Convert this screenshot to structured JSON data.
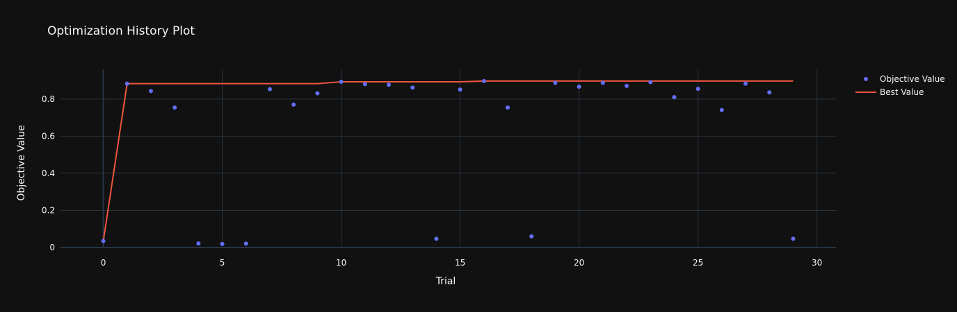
{
  "chart_data": {
    "type": "scatter",
    "title": "Optimization History Plot",
    "xlabel": "Trial",
    "ylabel": "Objective Value",
    "xlim": [
      -1.8,
      30.8
    ],
    "ylim": [
      0,
      0.96
    ],
    "xticks": [
      0,
      5,
      10,
      15,
      20,
      25,
      30
    ],
    "yticks": [
      0,
      0.2,
      0.4,
      0.6,
      0.8
    ],
    "ytick_labels": [
      "0",
      "0.2",
      "0.4",
      "0.6",
      "0.8"
    ],
    "grid": true,
    "legend_position": "top-right",
    "series": [
      {
        "name": "Objective Value",
        "type": "scatter",
        "color": "#636efa",
        "x": [
          0,
          1,
          2,
          3,
          4,
          5,
          6,
          7,
          8,
          9,
          10,
          11,
          12,
          13,
          14,
          15,
          16,
          17,
          18,
          19,
          20,
          21,
          22,
          23,
          24,
          25,
          26,
          27,
          28,
          29
        ],
        "y": [
          0.035,
          0.883,
          0.843,
          0.754,
          0.022,
          0.019,
          0.021,
          0.853,
          0.77,
          0.831,
          0.893,
          0.88,
          0.877,
          0.862,
          0.047,
          0.851,
          0.897,
          0.754,
          0.06,
          0.887,
          0.866,
          0.887,
          0.871,
          0.891,
          0.81,
          0.855,
          0.741,
          0.883,
          0.836,
          0.047
        ]
      },
      {
        "name": "Best Value",
        "type": "line",
        "color": "#ef553b",
        "x": [
          0,
          1,
          2,
          3,
          4,
          5,
          6,
          7,
          8,
          9,
          10,
          11,
          12,
          13,
          14,
          15,
          16,
          17,
          18,
          19,
          20,
          21,
          22,
          23,
          24,
          25,
          26,
          27,
          28,
          29
        ],
        "y": [
          0.035,
          0.883,
          0.883,
          0.883,
          0.883,
          0.883,
          0.883,
          0.883,
          0.883,
          0.883,
          0.893,
          0.893,
          0.893,
          0.893,
          0.893,
          0.893,
          0.897,
          0.897,
          0.897,
          0.897,
          0.897,
          0.897,
          0.897,
          0.897,
          0.897,
          0.897,
          0.897,
          0.897,
          0.897,
          0.897
        ]
      }
    ]
  },
  "colors": {
    "background": "#111111",
    "grid": "#283442",
    "text": "#f2f5fa"
  }
}
